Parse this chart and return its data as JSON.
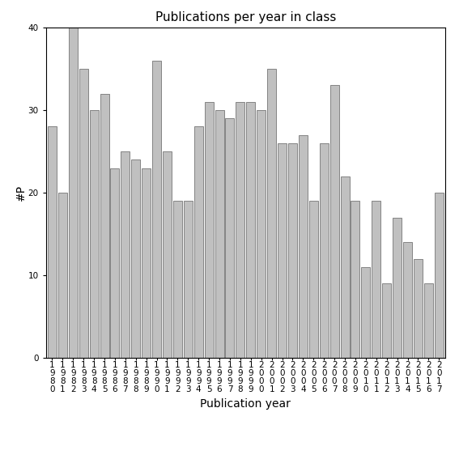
{
  "title": "Publications per year in class",
  "xlabel": "Publication year",
  "ylabel": "#P",
  "bar_color": "#c0c0c0",
  "bar_edgecolor": "#606060",
  "years": [
    "1980",
    "1981",
    "1982",
    "1983",
    "1984",
    "1985",
    "1986",
    "1987",
    "1988",
    "1989",
    "1990",
    "1991",
    "1992",
    "1993",
    "1994",
    "1995",
    "1996",
    "1997",
    "1998",
    "1999",
    "2000",
    "2001",
    "2002",
    "2003",
    "2004",
    "2005",
    "2006",
    "2007",
    "2008",
    "2009",
    "2010",
    "2011",
    "2012",
    "2013",
    "2014",
    "2015",
    "2016",
    "2017"
  ],
  "values": [
    28,
    20,
    40,
    35,
    30,
    32,
    23,
    25,
    24,
    23,
    36,
    25,
    19,
    19,
    28,
    31,
    30,
    29,
    31,
    31,
    30,
    35,
    26,
    26,
    27,
    19,
    26,
    33,
    22,
    19,
    11,
    19,
    9,
    17,
    14,
    12,
    9,
    20
  ],
  "ylim": [
    0,
    40
  ],
  "yticks": [
    0,
    10,
    20,
    30,
    40
  ],
  "background_color": "#ffffff",
  "title_fontsize": 11,
  "axis_label_fontsize": 10,
  "tick_fontsize": 7.5
}
